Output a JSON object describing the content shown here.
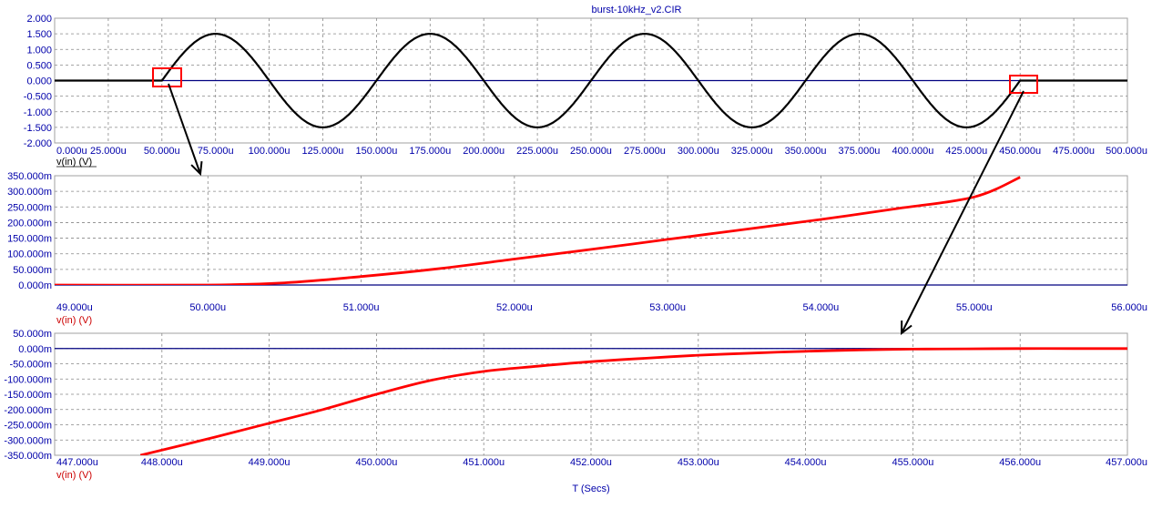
{
  "window": {
    "title": "burst-10kHz_v2.CIR"
  },
  "colors": {
    "axis_text": "#0000aa",
    "grid": "#888888",
    "zero_line": "#000080",
    "trace_top": "#000000",
    "trace_zoom": "#ff0000",
    "marker": "#ff0000",
    "arrow": "#000000"
  },
  "chart_data": [
    {
      "type": "line",
      "title": "burst-10kHz_v2.CIR",
      "ylabel": "v(in) (V)",
      "xlim": [
        0,
        500
      ],
      "ylim": [
        -2,
        2
      ],
      "x_ticks": [
        "0.000u",
        "25.000u",
        "50.000u",
        "75.000u",
        "100.000u",
        "125.000u",
        "150.000u",
        "175.000u",
        "200.000u",
        "225.000u",
        "250.000u",
        "275.000u",
        "300.000u",
        "325.000u",
        "350.000u",
        "375.000u",
        "400.000u",
        "425.000u",
        "450.000u",
        "475.000u",
        "500.000u"
      ],
      "y_ticks": [
        "2.000",
        "1.500",
        "1.000",
        "0.500",
        "0.000",
        "-0.500",
        "-1.000",
        "-1.500",
        "-2.000"
      ],
      "grid": true,
      "series": [
        {
          "name": "v(in) (V)",
          "x": [
            0,
            50,
            75,
            125,
            175,
            225,
            275,
            325,
            375,
            425,
            450,
            500
          ],
          "y": [
            0,
            0,
            1.5,
            -1.5,
            1.5,
            -1.5,
            1.5,
            -1.5,
            1.5,
            -1.5,
            0,
            0
          ]
        }
      ]
    },
    {
      "type": "line",
      "ylabel": "v(in) (V)",
      "xlim": [
        49,
        56
      ],
      "ylim": [
        0,
        350
      ],
      "x_ticks": [
        "49.000u",
        "50.000u",
        "51.000u",
        "52.000u",
        "53.000u",
        "54.000u",
        "55.000u",
        "56.000u"
      ],
      "y_ticks": [
        "350.000m",
        "300.000m",
        "250.000m",
        "200.000m",
        "150.000m",
        "100.000m",
        "50.000m",
        "0.000m"
      ],
      "grid": true,
      "series": [
        {
          "name": "v(in) (V)",
          "x": [
            49,
            50,
            50.5,
            51,
            51.5,
            52,
            52.5,
            53,
            53.5,
            54,
            54.5,
            55,
            55.3
          ],
          "y": [
            0,
            0,
            7,
            27,
            52,
            83,
            114,
            146,
            178,
            210,
            245,
            282,
            345
          ]
        }
      ]
    },
    {
      "type": "line",
      "ylabel": "v(in) (V)",
      "xlabel": "T (Secs)",
      "xlim": [
        447,
        457
      ],
      "ylim": [
        -350,
        50
      ],
      "x_ticks": [
        "447.000u",
        "448.000u",
        "449.000u",
        "450.000u",
        "451.000u",
        "452.000u",
        "453.000u",
        "454.000u",
        "455.000u",
        "456.000u",
        "457.000u"
      ],
      "y_ticks": [
        "50.000m",
        "0.000m",
        "-50.000m",
        "-100.000m",
        "-150.000m",
        "-200.000m",
        "-250.000m",
        "-300.000m",
        "-350.000m"
      ],
      "grid": true,
      "series": [
        {
          "name": "v(in) (V)",
          "x": [
            447.8,
            448.5,
            449,
            449.5,
            450,
            450.5,
            451,
            451.5,
            452,
            452.5,
            453,
            453.5,
            454,
            454.5,
            455,
            455.5,
            456,
            456.5,
            457
          ],
          "y": [
            -350,
            -290,
            -245,
            -200,
            -150,
            -105,
            -75,
            -58,
            -43,
            -32,
            -22,
            -15,
            -9,
            -5,
            -2,
            -1,
            0,
            0,
            0
          ]
        }
      ]
    }
  ]
}
